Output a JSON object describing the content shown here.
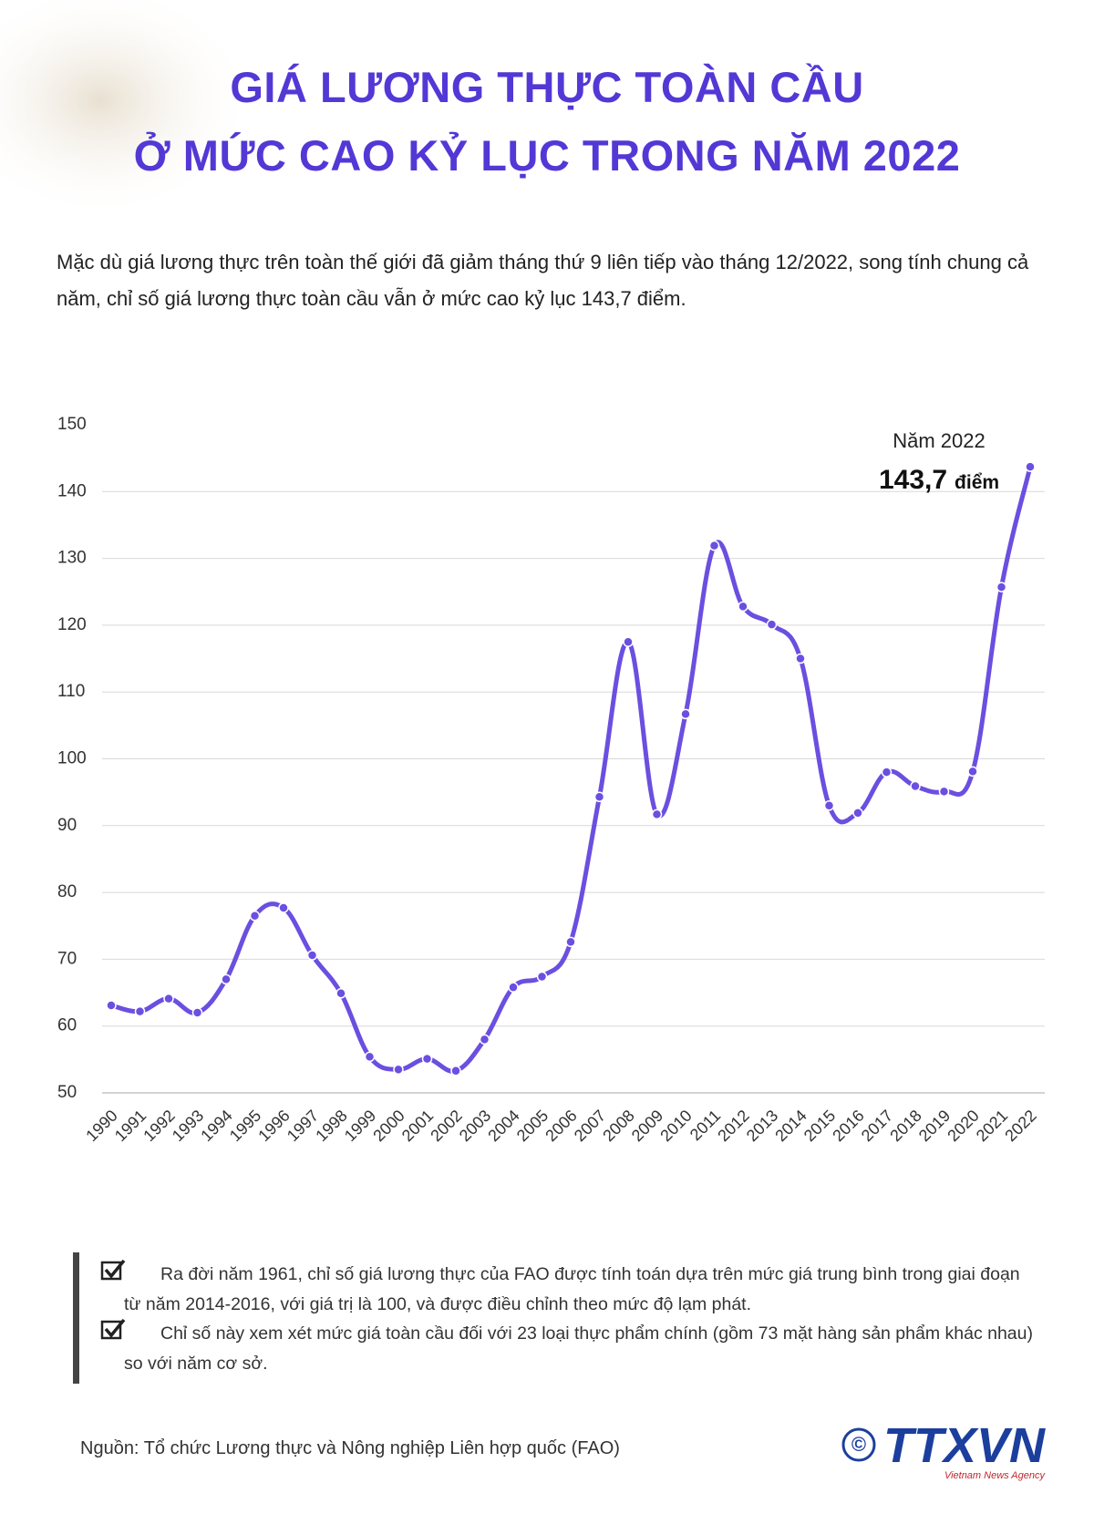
{
  "header": {
    "title_lines": [
      "GIÁ LƯƠNG THỰC TOÀN CẦU",
      "Ở MỨC CAO KỶ LỤC TRONG NĂM 2022"
    ],
    "intro": "Mặc dù giá lương thực trên toàn thế giới đã giảm tháng thứ 9 liên tiếp vào tháng 12/2022, song tính chung cả năm, chỉ số giá lương thực toàn cầu vẫn ở mức cao kỷ lục 143,7 điểm."
  },
  "chart_data": {
    "type": "line",
    "categories": [
      "1990",
      "1991",
      "1992",
      "1993",
      "1994",
      "1995",
      "1996",
      "1997",
      "1998",
      "1999",
      "2000",
      "2001",
      "2002",
      "2003",
      "2004",
      "2005",
      "2006",
      "2007",
      "2008",
      "2009",
      "2010",
      "2011",
      "2012",
      "2013",
      "2014",
      "2015",
      "2016",
      "2017",
      "2018",
      "2019",
      "2020",
      "2021",
      "2022"
    ],
    "series": [
      {
        "color": "#6a4fe0",
        "values": [
          63.1,
          62.2,
          64.1,
          62.0,
          67.0,
          76.5,
          77.7,
          70.6,
          64.9,
          55.4,
          53.5,
          55.1,
          53.3,
          58.0,
          65.8,
          67.4,
          72.6,
          94.3,
          117.5,
          91.7,
          106.7,
          131.9,
          122.8,
          120.1,
          115.0,
          93.0,
          91.9,
          98.0,
          95.9,
          95.1,
          98.1,
          125.7,
          143.7
        ]
      }
    ],
    "ylim": [
      50,
      150
    ],
    "yticks": [
      50,
      60,
      70,
      80,
      90,
      100,
      110,
      120,
      130,
      140,
      150
    ],
    "grid": true,
    "annotation": {
      "title": "Năm 2022",
      "value_label": "143,7",
      "unit": "điểm"
    }
  },
  "notes": [
    "Ra đời năm 1961, chỉ số giá lương thực của FAO được tính toán dựa trên mức giá trung bình trong giai đoạn từ năm 2014-2016, với giá trị là 100, và được điều chỉnh theo mức độ lạm phát.",
    "Chỉ số này xem xét mức giá toàn cầu đối với 23 loại thực phẩm chính (gồm 73 mặt hàng sản phẩm khác nhau) so với năm cơ sở."
  ],
  "source": "Nguồn: Tổ chức Lương thực và Nông nghiệp Liên hợp quốc (FAO)",
  "logo": {
    "symbol": "©",
    "name": "TTXVN",
    "tagline": "Vietnam News Agency"
  }
}
